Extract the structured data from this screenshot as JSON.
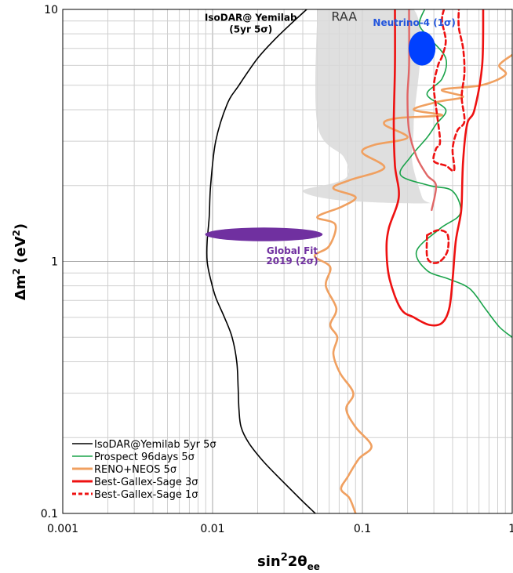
{
  "chart_data": {
    "type": "line",
    "title": "",
    "xlabel": {
      "main": "sin",
      "sup": "2",
      "theta": "2θ",
      "sub": "ee"
    },
    "ylabel": {
      "delta": "Δm",
      "sup": "2",
      "unit": " (eV",
      "unit_sup": "2",
      "close": ")"
    },
    "x_scale": "log",
    "y_scale": "log",
    "xlim": [
      0.001,
      1
    ],
    "ylim": [
      0.1,
      10
    ],
    "x_ticks": [
      {
        "value": 0.001,
        "label": "0.001"
      },
      {
        "value": 0.01,
        "label": "0.01"
      },
      {
        "value": 0.1,
        "label": "0.1"
      },
      {
        "value": 1,
        "label": "1"
      }
    ],
    "y_ticks": [
      {
        "value": 0.1,
        "label": "0.1"
      },
      {
        "value": 1,
        "label": "1"
      },
      {
        "value": 10,
        "label": "10"
      }
    ],
    "grid": true,
    "legend_position": "bottom-left",
    "series": [
      {
        "name": "IsoDAR@Yemilab 5yr 5σ",
        "color": "#000000",
        "style": "solid",
        "points": [
          [
            0.0485,
            0.1
          ],
          [
            0.038,
            0.115
          ],
          [
            0.029,
            0.135
          ],
          [
            0.022,
            0.16
          ],
          [
            0.0175,
            0.19
          ],
          [
            0.0155,
            0.22
          ],
          [
            0.015,
            0.26
          ],
          [
            0.0148,
            0.32
          ],
          [
            0.0145,
            0.4
          ],
          [
            0.0135,
            0.5
          ],
          [
            0.012,
            0.6
          ],
          [
            0.0105,
            0.72
          ],
          [
            0.0097,
            0.85
          ],
          [
            0.0092,
            1.0
          ],
          [
            0.0092,
            1.2
          ],
          [
            0.0095,
            1.5
          ],
          [
            0.0097,
            2.0
          ],
          [
            0.0105,
            3.0
          ],
          [
            0.0125,
            4.2
          ],
          [
            0.015,
            5.0
          ],
          [
            0.02,
            6.4
          ],
          [
            0.026,
            7.6
          ],
          [
            0.035,
            9.0
          ],
          [
            0.0425,
            10.0
          ]
        ]
      },
      {
        "name": "Prospect 96days 5σ",
        "color": "#1aa34a",
        "style": "solid",
        "points": [
          [
            0.26,
            10
          ],
          [
            0.24,
            8.7
          ],
          [
            0.28,
            7.7
          ],
          [
            0.36,
            6.4
          ],
          [
            0.34,
            5.3
          ],
          [
            0.27,
            4.6
          ],
          [
            0.36,
            4.0
          ],
          [
            0.31,
            3.5
          ],
          [
            0.27,
            3.1
          ],
          [
            0.21,
            2.6
          ],
          [
            0.18,
            2.2
          ],
          [
            0.28,
            2.0
          ],
          [
            0.4,
            1.9
          ],
          [
            0.45,
            1.55
          ],
          [
            0.33,
            1.35
          ],
          [
            0.23,
            1.1
          ],
          [
            0.27,
            0.92
          ],
          [
            0.38,
            0.85
          ],
          [
            0.52,
            0.78
          ],
          [
            0.66,
            0.65
          ],
          [
            0.82,
            0.55
          ],
          [
            1.0,
            0.5
          ]
        ]
      },
      {
        "name": "RENO+NEOS 5σ",
        "color": "#f0a060",
        "style": "solid",
        "points": [
          [
            0.09,
            0.1
          ],
          [
            0.082,
            0.115
          ],
          [
            0.072,
            0.125
          ],
          [
            0.08,
            0.14
          ],
          [
            0.095,
            0.165
          ],
          [
            0.115,
            0.185
          ],
          [
            0.09,
            0.22
          ],
          [
            0.078,
            0.26
          ],
          [
            0.087,
            0.3
          ],
          [
            0.071,
            0.36
          ],
          [
            0.064,
            0.43
          ],
          [
            0.068,
            0.5
          ],
          [
            0.061,
            0.56
          ],
          [
            0.067,
            0.65
          ],
          [
            0.057,
            0.8
          ],
          [
            0.061,
            0.95
          ],
          [
            0.048,
            1.05
          ],
          [
            0.06,
            1.15
          ],
          [
            0.066,
            1.4
          ],
          [
            0.05,
            1.5
          ],
          [
            0.073,
            1.65
          ],
          [
            0.09,
            1.8
          ],
          [
            0.064,
            1.95
          ],
          [
            0.082,
            2.1
          ],
          [
            0.14,
            2.35
          ],
          [
            0.1,
            2.7
          ],
          [
            0.12,
            2.9
          ],
          [
            0.2,
            3.1
          ],
          [
            0.14,
            3.5
          ],
          [
            0.17,
            3.7
          ],
          [
            0.34,
            3.8
          ],
          [
            0.22,
            4.0
          ],
          [
            0.32,
            4.3
          ],
          [
            0.47,
            4.5
          ],
          [
            0.34,
            4.8
          ],
          [
            0.62,
            5.0
          ],
          [
            0.9,
            5.5
          ],
          [
            0.82,
            6.0
          ],
          [
            1.0,
            6.6
          ]
        ]
      },
      {
        "name": "Best-Gallex-Sage  3σ",
        "color": "#ee1111",
        "style": "solid",
        "points": [
          [
            0.165,
            10
          ],
          [
            0.165,
            6.0
          ],
          [
            0.162,
            3.5
          ],
          [
            0.165,
            2.4
          ],
          [
            0.175,
            1.8
          ],
          [
            0.15,
            1.35
          ],
          [
            0.145,
            1.1
          ],
          [
            0.152,
            0.85
          ],
          [
            0.18,
            0.65
          ],
          [
            0.22,
            0.6
          ],
          [
            0.28,
            0.56
          ],
          [
            0.34,
            0.57
          ],
          [
            0.38,
            0.65
          ],
          [
            0.4,
            0.85
          ],
          [
            0.42,
            1.2
          ],
          [
            0.45,
            1.5
          ],
          [
            0.46,
            1.7
          ],
          [
            0.47,
            2.5
          ],
          [
            0.5,
            3.5
          ],
          [
            0.56,
            4.0
          ],
          [
            0.63,
            6.0
          ],
          [
            0.64,
            10
          ]
        ]
      },
      {
        "name": "Best-Gallex-Sage  1σ",
        "color": "#ee1111",
        "style": "dashed",
        "points": [
          [
            0.35,
            10
          ],
          [
            0.34,
            9.0
          ],
          [
            0.36,
            7.5
          ],
          [
            0.34,
            6.5
          ],
          [
            0.32,
            6.0
          ],
          [
            0.3,
            5.0
          ],
          [
            0.31,
            4.1
          ],
          [
            0.33,
            3.0
          ],
          [
            0.31,
            2.8
          ],
          [
            0.3,
            2.5
          ],
          [
            0.36,
            2.4
          ],
          [
            0.41,
            2.3
          ],
          [
            0.4,
            2.8
          ],
          [
            0.43,
            3.3
          ],
          [
            0.48,
            3.6
          ],
          [
            0.46,
            4.5
          ],
          [
            0.48,
            5.6
          ],
          [
            0.47,
            7.0
          ],
          [
            0.44,
            8.5
          ],
          [
            0.44,
            10
          ]
        ]
      },
      {
        "name": "",
        "color": "#ee1111",
        "style": "dashed",
        "points": [
          [
            0.27,
            1.27
          ],
          [
            0.32,
            1.33
          ],
          [
            0.37,
            1.28
          ],
          [
            0.37,
            1.1
          ],
          [
            0.33,
            1.0
          ],
          [
            0.29,
            0.99
          ],
          [
            0.27,
            1.05
          ],
          [
            0.27,
            1.27
          ]
        ]
      },
      {
        "name": "",
        "color": "#e06666",
        "style": "solid",
        "points": [
          [
            0.205,
            10
          ],
          [
            0.205,
            6.0
          ],
          [
            0.2,
            4.5
          ],
          [
            0.205,
            3.3
          ],
          [
            0.23,
            2.6
          ],
          [
            0.27,
            2.2
          ],
          [
            0.31,
            2.0
          ],
          [
            0.29,
            1.6
          ]
        ]
      }
    ],
    "regions": [
      {
        "label": "RAA",
        "color": "#d9d9d9",
        "points": [
          [
            0.05,
            10
          ],
          [
            0.22,
            10
          ],
          [
            0.22,
            3.5
          ],
          [
            0.215,
            2.5
          ],
          [
            0.25,
            1.8
          ],
          [
            0.26,
            1.7
          ],
          [
            0.07,
            1.75
          ],
          [
            0.04,
            1.9
          ],
          [
            0.065,
            2.05
          ],
          [
            0.08,
            2.2
          ],
          [
            0.075,
            2.6
          ],
          [
            0.05,
            3.5
          ],
          [
            0.05,
            10
          ]
        ]
      }
    ],
    "ellipses": [
      {
        "label": "Neutrino-4 (1σ)",
        "color": "#0040ff",
        "text_color": "#2255dd",
        "center": [
          0.25,
          7.0
        ],
        "x_range": [
          0.205,
          0.31
        ],
        "y_range": [
          6.0,
          8.2
        ]
      },
      {
        "label": "Global Fit",
        "label2": "2019 (2σ)",
        "color": "#7030a0",
        "text_color": "#7030a0",
        "center": [
          0.022,
          1.28
        ],
        "x_range": [
          0.0087,
          0.053
        ],
        "y_range": [
          1.2,
          1.36
        ]
      }
    ],
    "annotations": [
      {
        "text": "IsoDAR@ Yemilab",
        "text2": "(5yr 5σ)",
        "x": 0.018,
        "y": 9.0
      }
    ]
  }
}
